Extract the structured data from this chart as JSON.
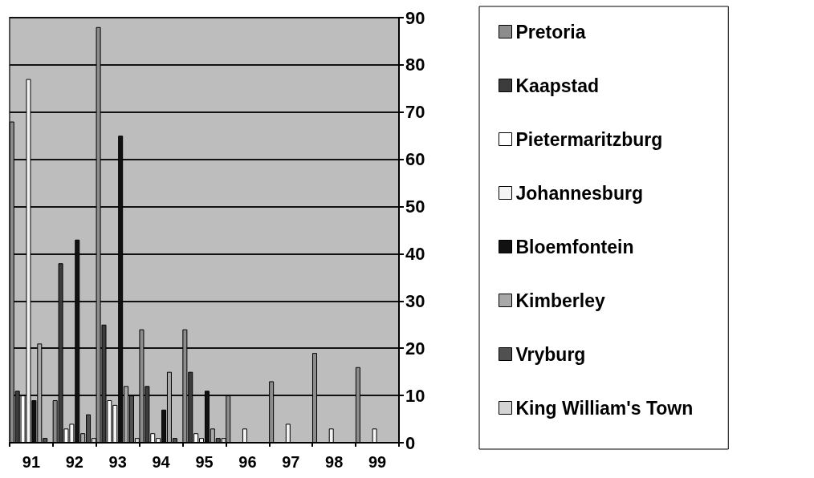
{
  "chart_data": {
    "type": "bar",
    "categories": [
      "91",
      "92",
      "93",
      "94",
      "95",
      "96",
      "97",
      "98",
      "99"
    ],
    "series": [
      {
        "name": "Pretoria",
        "color": "#8c8c8c",
        "values": [
          68,
          9,
          88,
          24,
          24,
          10,
          13,
          19,
          16
        ]
      },
      {
        "name": "Kaapstad",
        "color": "#3c3c3c",
        "values": [
          11,
          38,
          25,
          12,
          15,
          null,
          null,
          null,
          null
        ]
      },
      {
        "name": "Pietermaritzburg",
        "color": "#ffffff",
        "values": [
          10,
          3,
          9,
          2,
          2,
          null,
          null,
          null,
          null
        ]
      },
      {
        "name": "Johannesburg",
        "color": "#f4f4f4",
        "values": [
          77,
          4,
          8,
          1,
          1,
          3,
          4,
          3,
          3
        ]
      },
      {
        "name": "Bloemfontein",
        "color": "#111111",
        "values": [
          9,
          43,
          65,
          7,
          11,
          null,
          null,
          null,
          null
        ]
      },
      {
        "name": "Kimberley",
        "color": "#a8a8a8",
        "values": [
          21,
          2,
          12,
          15,
          3,
          null,
          null,
          null,
          null
        ]
      },
      {
        "name": "Vryburg",
        "color": "#505050",
        "values": [
          1,
          6,
          10,
          1,
          1,
          null,
          null,
          null,
          null
        ]
      },
      {
        "name": "King William's Town",
        "color": "#d4d4d4",
        "values": [
          null,
          1,
          1,
          null,
          1,
          null,
          null,
          null,
          null
        ]
      }
    ],
    "ylim": [
      0,
      90
    ],
    "yticks": [
      0,
      10,
      20,
      30,
      40,
      50,
      60,
      70,
      80,
      90
    ],
    "grid": "y",
    "legend": "right"
  }
}
